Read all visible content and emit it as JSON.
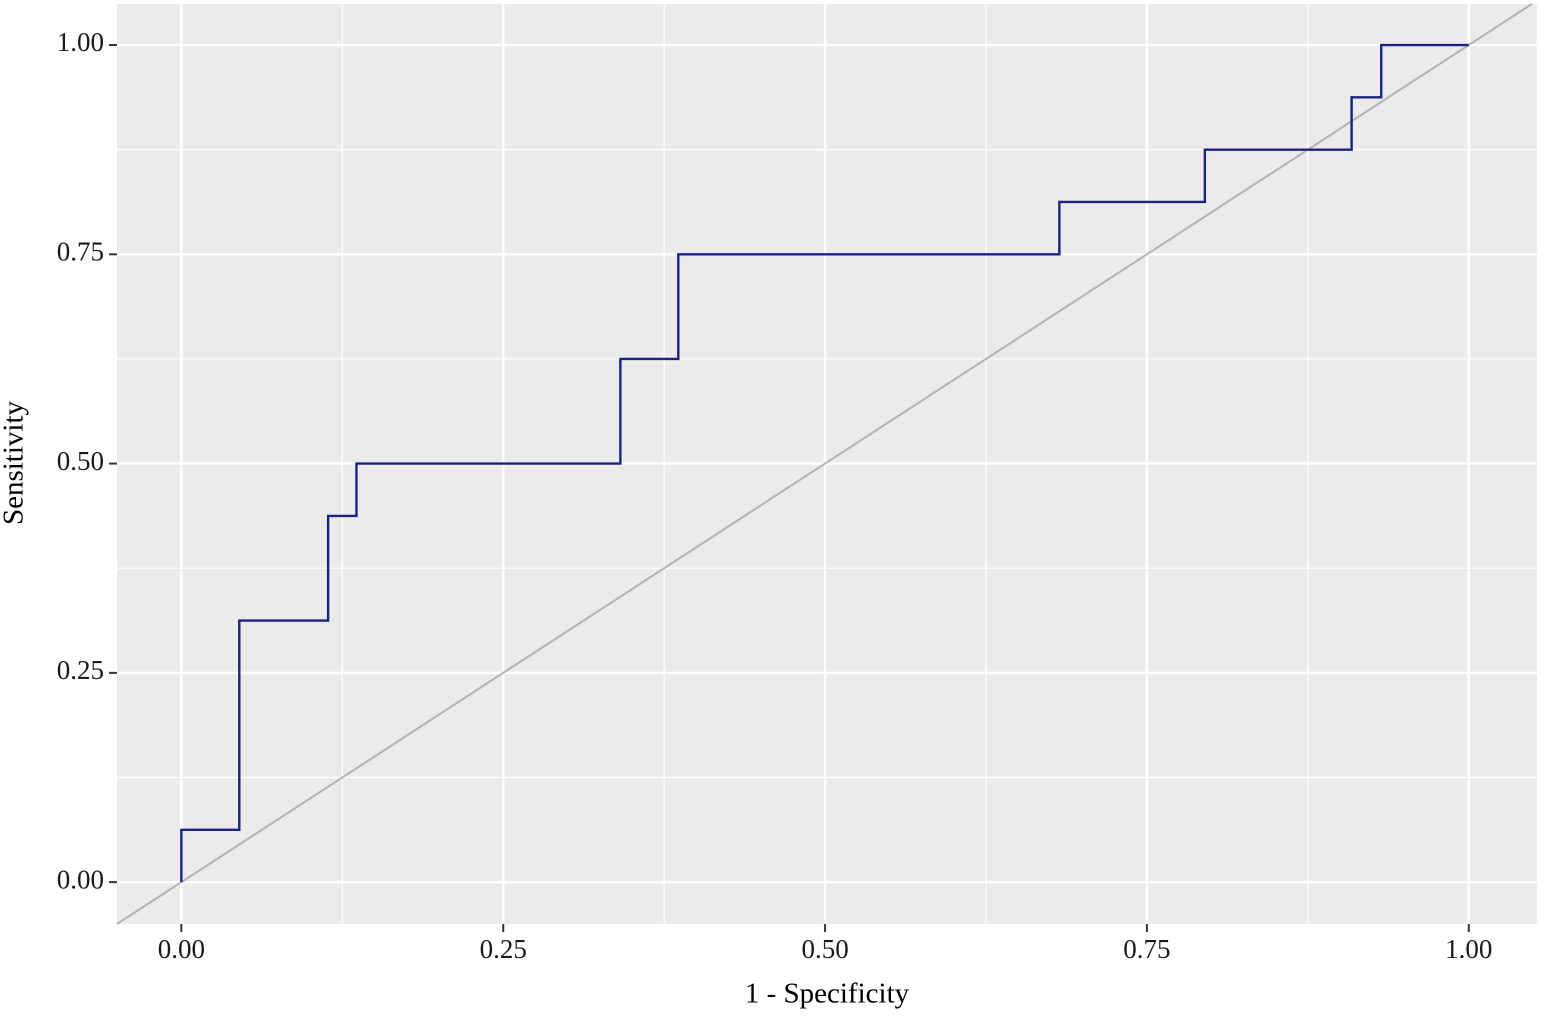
{
  "chart_data": {
    "type": "line",
    "x_label": "1 - Specificity",
    "y_label": "Sensitivity",
    "x": [
      0,
      0,
      0.045,
      0.045,
      0.114,
      0.114,
      0.136,
      0.136,
      0.341,
      0.341,
      0.386,
      0.386,
      0.682,
      0.682,
      0.795,
      0.795,
      0.909,
      0.909,
      0.932,
      0.932,
      1
    ],
    "values": [
      0,
      0.0625,
      0.0625,
      0.3125,
      0.3125,
      0.4375,
      0.4375,
      0.5,
      0.5,
      0.625,
      0.625,
      0.75,
      0.75,
      0.8125,
      0.8125,
      0.875,
      0.875,
      0.9375,
      0.9375,
      1,
      1
    ],
    "color": "#1a237e",
    "xlim": [
      -0.05,
      1.053
    ],
    "ylim": [
      -0.05,
      1.049
    ],
    "xticks": [
      {
        "value": 0,
        "label": "0.00"
      },
      {
        "value": 0.25,
        "label": "0.25"
      },
      {
        "value": 0.5,
        "label": "0.50"
      },
      {
        "value": 0.75,
        "label": "0.75"
      },
      {
        "value": 1,
        "label": "1.00"
      }
    ],
    "yticks": [
      {
        "value": 0,
        "label": "0.00"
      },
      {
        "value": 0.25,
        "label": "0.25"
      },
      {
        "value": 0.5,
        "label": "0.50"
      },
      {
        "value": 0.75,
        "label": "0.75"
      },
      {
        "value": 1,
        "label": "1.00"
      }
    ],
    "xminor": [
      0.125,
      0.375,
      0.625,
      0.875
    ],
    "yminor": [
      0.125,
      0.375,
      0.625,
      0.875
    ],
    "grid": true,
    "diagonal": true
  }
}
